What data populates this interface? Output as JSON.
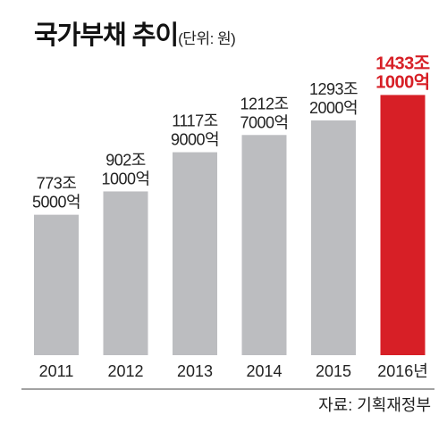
{
  "header": {
    "title": "국가부채 추이",
    "subtitle": "(단위: 원)"
  },
  "chart_data": {
    "type": "bar",
    "title": "국가부채 추이",
    "subtitle": "(단위: 원)",
    "unit": "원",
    "categories": [
      "2011",
      "2012",
      "2013",
      "2014",
      "2015",
      "2016년"
    ],
    "values": [
      773.5,
      902.1,
      1117.9,
      1212.7,
      1293.2,
      1433.1
    ],
    "value_unit": "조 원",
    "data_labels": [
      [
        "773조",
        "5000억"
      ],
      [
        "902조",
        "1000억"
      ],
      [
        "1117조",
        "9000억"
      ],
      [
        "1212조",
        "7000억"
      ],
      [
        "1293조",
        "2000억"
      ],
      [
        "1433조",
        "1000억"
      ]
    ],
    "ylim": [
      0,
      1450
    ],
    "grid": false,
    "legend": "none",
    "colors": {
      "bar": "#bcbdc0",
      "highlight_bar": "#d71f26",
      "label": "#222222",
      "highlight_label": "#d71f26",
      "axis": "#444444"
    },
    "highlight_index": 5
  },
  "footer": {
    "source": "자료: 기획재정부"
  }
}
